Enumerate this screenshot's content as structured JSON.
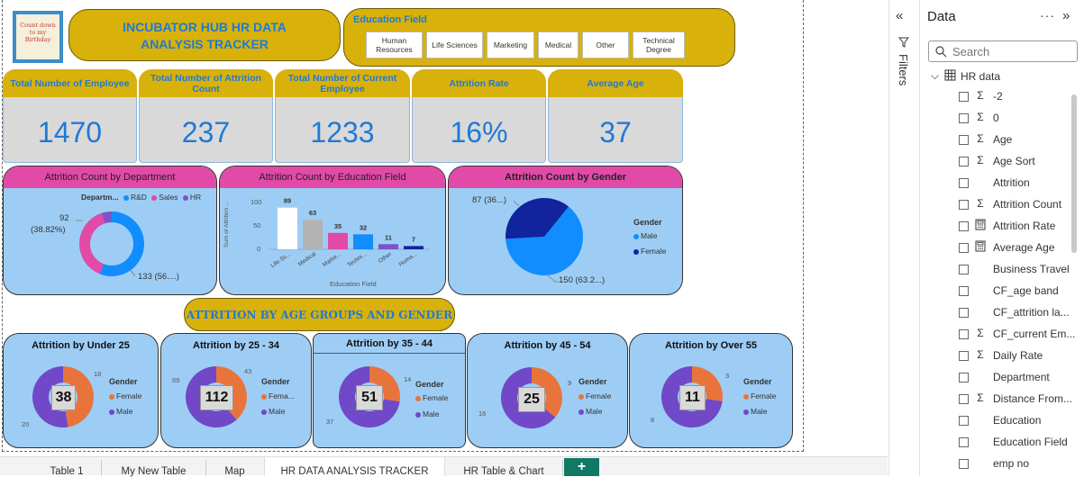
{
  "header": {
    "title_line1": "INCUBATOR HUB HR DATA",
    "title_line2": "ANALYSIS TRACKER",
    "logo_text": "Count down to my Birthday"
  },
  "slicer": {
    "title": "Education Field",
    "options": [
      "Human Resources",
      "Life Sciences",
      "Marketing",
      "Medical",
      "Other",
      "Technical Degree"
    ]
  },
  "kpis": [
    {
      "label": "Total Number of Employee",
      "value": "1470"
    },
    {
      "label": "Total Number of Attrition Count",
      "value": "237"
    },
    {
      "label": "Total Number of Current Employee",
      "value": "1233"
    },
    {
      "label": "Attrition Rate",
      "value": "16%"
    },
    {
      "label": "Average Age",
      "value": "37"
    }
  ],
  "dept_chart": {
    "title": "Attrition Count by Department",
    "legend_title": "Departm...",
    "legend": [
      "R&D",
      "Sales",
      "HR"
    ],
    "label_sales": "92",
    "label_sales_pct": "(38.82%)",
    "label_rd": "133 (56....)"
  },
  "edu_chart": {
    "title": "Attrition Count by Education Field",
    "y_axis_label": "Sum of Attrition ...",
    "x_axis_label": "Education Field",
    "y_ticks": [
      "100",
      "50",
      "0"
    ],
    "bar_labels": [
      "Life Sc...",
      "Medical",
      "Marke...",
      "Techni...",
      "Other",
      "Huma..."
    ]
  },
  "gender_chart": {
    "title": "Attrition Count by Gender",
    "legend_title": "Gender",
    "legend": [
      "Male",
      "Female"
    ],
    "label_female": "87 (36...)",
    "label_male": "150 (63.2...)"
  },
  "age_banner": {
    "title": "ATTRITION BY AGE GROUPS AND GENDER"
  },
  "age_charts": [
    {
      "title": "Attrition by Under 25",
      "center": "38",
      "female": "18",
      "male": "20",
      "legend_title": "Gender",
      "legend": [
        "Female",
        "Male"
      ]
    },
    {
      "title": "Attrition by 25 - 34",
      "center": "112",
      "female": "43",
      "male": "69",
      "legend_title": "Gender",
      "legend": [
        "Fema...",
        "Male"
      ]
    },
    {
      "title": "Attrition by 35 - 44",
      "center": "51",
      "female": "14",
      "male": "37",
      "legend_title": "Gender",
      "legend": [
        "Female",
        "Male"
      ]
    },
    {
      "title": "Attrition by 45 - 54",
      "center": "25",
      "female": "9",
      "male": "16",
      "legend_title": "Gender",
      "legend": [
        "Female",
        "Male"
      ]
    },
    {
      "title": "Attrition by Over 55",
      "center": "11",
      "female": "3",
      "male": "8",
      "legend_title": "Gender",
      "legend": [
        "Female",
        "Male"
      ]
    }
  ],
  "chart_data": [
    {
      "type": "pie",
      "title": "Attrition Count by Department",
      "categories": [
        "R&D",
        "Sales",
        "HR"
      ],
      "values": [
        133,
        92,
        12
      ],
      "legend_position": "top"
    },
    {
      "type": "bar",
      "title": "Attrition Count by Education Field",
      "categories": [
        "Life Sc...",
        "Medical",
        "Marke...",
        "Techni...",
        "Other",
        "Huma..."
      ],
      "values": [
        89,
        63,
        35,
        32,
        11,
        7
      ],
      "ylabel": "Sum of Attrition ...",
      "xlabel": "Education Field",
      "ylim": [
        0,
        100
      ]
    },
    {
      "type": "pie",
      "title": "Attrition Count by Gender",
      "categories": [
        "Male",
        "Female"
      ],
      "values": [
        150,
        87
      ],
      "legend_position": "right"
    },
    {
      "type": "pie",
      "title": "Attrition by Under 25",
      "categories": [
        "Female",
        "Male"
      ],
      "values": [
        18,
        20
      ]
    },
    {
      "type": "pie",
      "title": "Attrition by 25 - 34",
      "categories": [
        "Female",
        "Male"
      ],
      "values": [
        43,
        69
      ]
    },
    {
      "type": "pie",
      "title": "Attrition by 35 - 44",
      "categories": [
        "Female",
        "Male"
      ],
      "values": [
        14,
        37
      ]
    },
    {
      "type": "pie",
      "title": "Attrition by 45 - 54",
      "categories": [
        "Female",
        "Male"
      ],
      "values": [
        9,
        16
      ]
    },
    {
      "type": "pie",
      "title": "Attrition by Over 55",
      "categories": [
        "Female",
        "Male"
      ],
      "values": [
        3,
        8
      ]
    }
  ],
  "colors": {
    "gold": "#d8b10a",
    "accent_blue": "#1f7ad6",
    "pink": "#e24aa8",
    "card_blue": "#9dcdf5",
    "female_orange": "#e8743b",
    "male_purple": "#7048c8",
    "rd_blue": "#118dff",
    "hr_purple": "#7b53c9",
    "gender_navy": "#12239e"
  },
  "filters_pane": {
    "label": "Filters"
  },
  "data_pane": {
    "title": "Data",
    "search_placeholder": "Search",
    "table_name": "HR data",
    "fields": [
      {
        "name": "-2",
        "icon": "sigma-icon"
      },
      {
        "name": "0",
        "icon": "sigma-icon"
      },
      {
        "name": "Age",
        "icon": "sigma-icon"
      },
      {
        "name": "Age Sort",
        "icon": "sigma-icon"
      },
      {
        "name": "Attrition",
        "icon": ""
      },
      {
        "name": "Attrition Count",
        "icon": "sigma-icon"
      },
      {
        "name": "Attrition Rate",
        "icon": "calculator-icon"
      },
      {
        "name": "Average Age",
        "icon": "calculator-icon"
      },
      {
        "name": "Business Travel",
        "icon": ""
      },
      {
        "name": "CF_age band",
        "icon": ""
      },
      {
        "name": "CF_attrition la...",
        "icon": ""
      },
      {
        "name": "CF_current Em...",
        "icon": "sigma-icon"
      },
      {
        "name": "Daily Rate",
        "icon": "sigma-icon"
      },
      {
        "name": "Department",
        "icon": ""
      },
      {
        "name": "Distance From...",
        "icon": "sigma-icon"
      },
      {
        "name": "Education",
        "icon": ""
      },
      {
        "name": "Education Field",
        "icon": ""
      },
      {
        "name": "emp no",
        "icon": ""
      }
    ]
  },
  "tabs": [
    {
      "label": "Table 1"
    },
    {
      "label": "My New Table"
    },
    {
      "label": "Map"
    },
    {
      "label": "HR DATA ANALYSIS TRACKER"
    },
    {
      "label": "HR Table & Chart"
    }
  ],
  "add_tab_label": "+"
}
